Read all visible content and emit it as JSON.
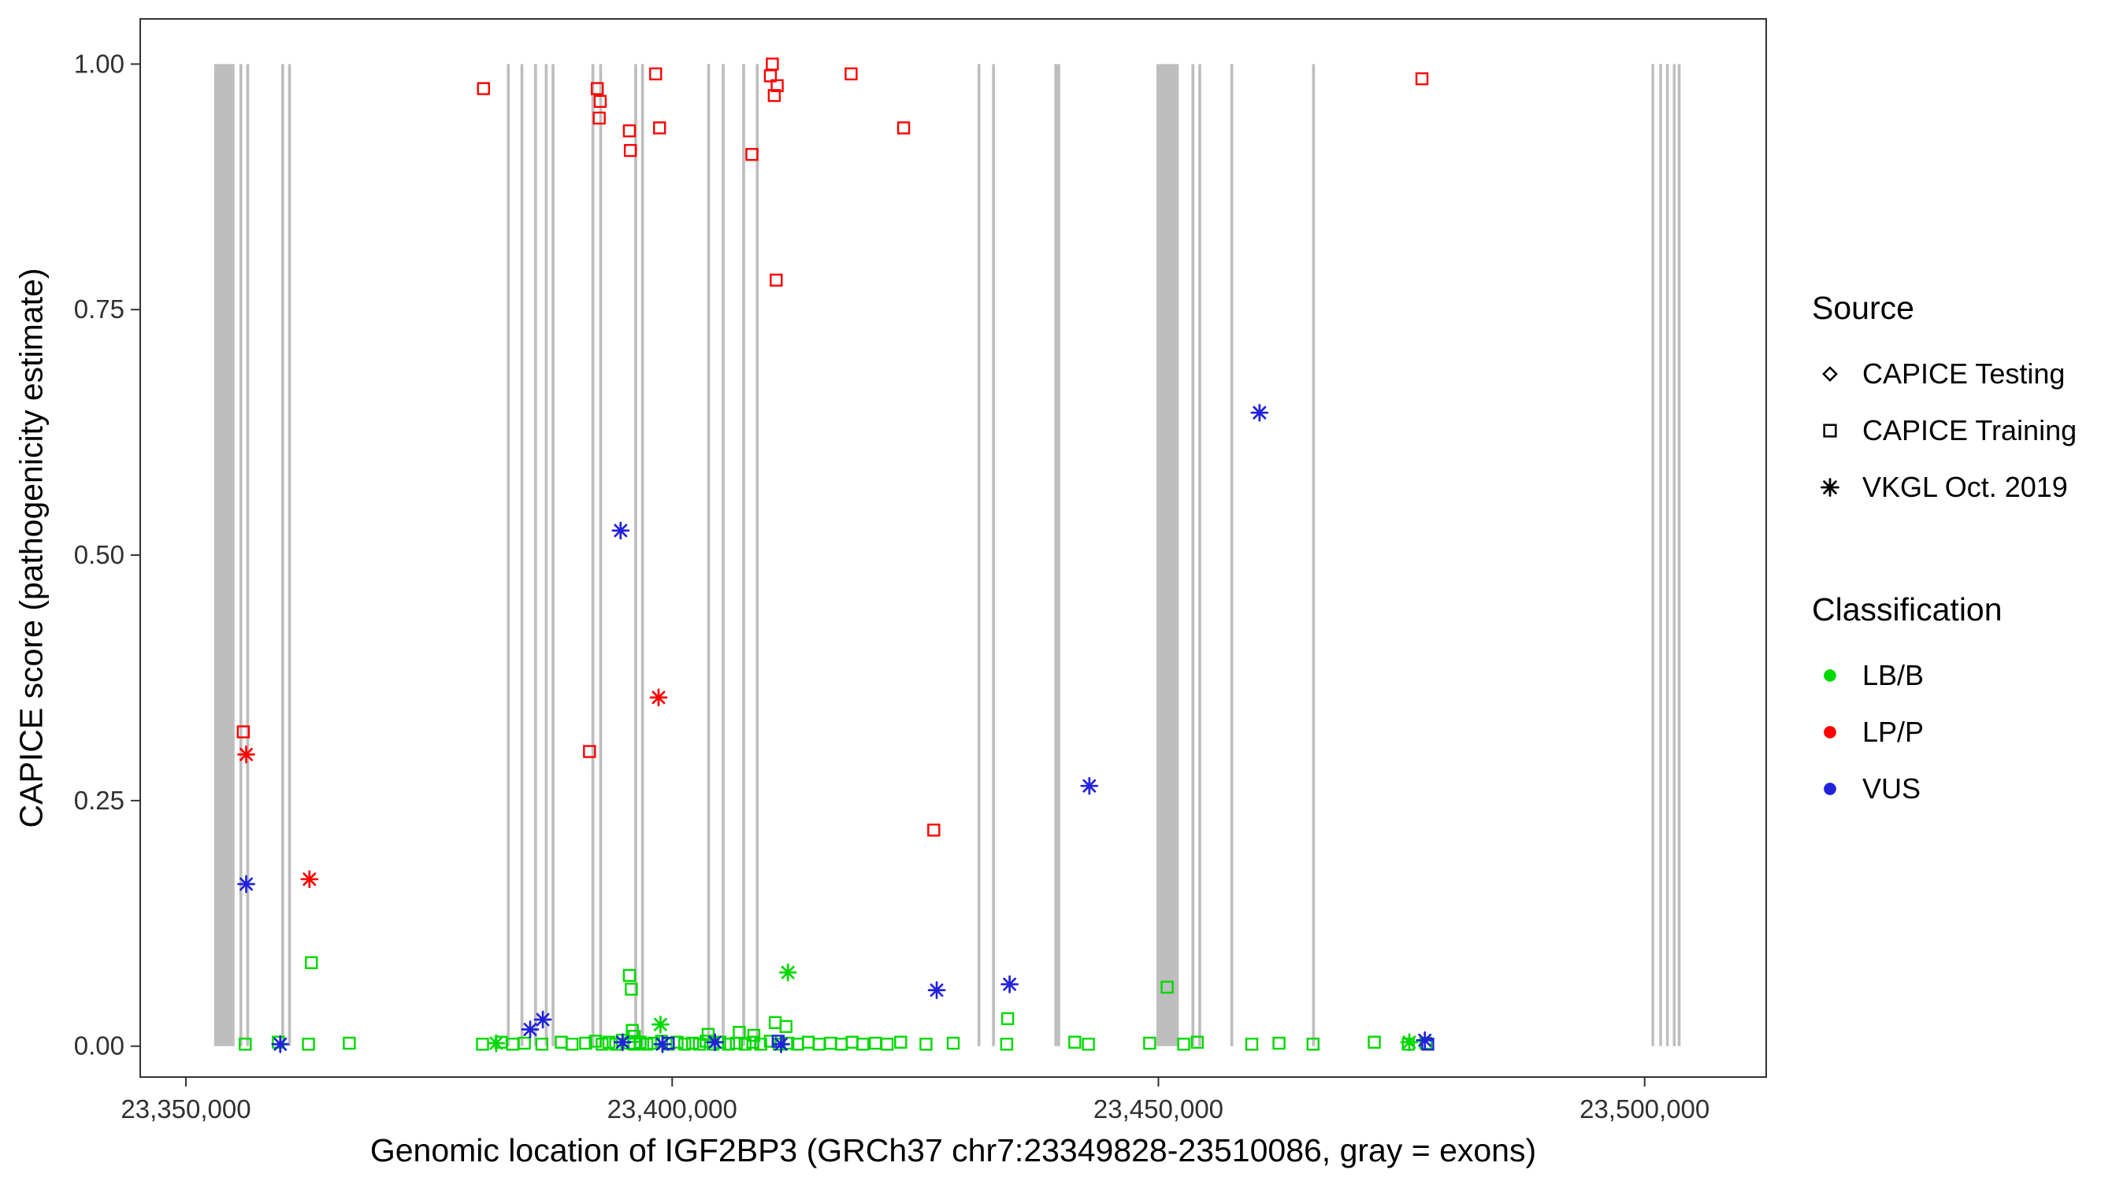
{
  "figure": {
    "x_axis_title": "Genomic location of IGF2BP3 (GRCh37 chr7:23349828-23510086, gray = exons)",
    "y_axis_title": "CAPICE score (pathogenicity estimate)"
  },
  "legend": {
    "source": {
      "title": "Source",
      "items": [
        {
          "label": "CAPICE Testing",
          "glyph": "diamond"
        },
        {
          "label": "CAPICE Training",
          "glyph": "square"
        },
        {
          "label": "VKGL Oct. 2019",
          "glyph": "asterisk"
        }
      ]
    },
    "classification": {
      "title": "Classification",
      "items": [
        {
          "label": "LB/B",
          "color": "#00D900"
        },
        {
          "label": "LP/P",
          "color": "#FF0000"
        },
        {
          "label": "VUS",
          "color": "#2222DD"
        }
      ]
    }
  },
  "chart_data": {
    "type": "scatter",
    "title": "",
    "xlabel": "Genomic location of IGF2BP3 (GRCh37 chr7:23349828-23510086, gray = exons)",
    "ylabel": "CAPICE score (pathogenicity estimate)",
    "x_domain": [
      23345300,
      23512500
    ],
    "y_domain": [
      -0.0315,
      1.046
    ],
    "x_ticks": [
      {
        "value": 23350000,
        "label": "23,350,000"
      },
      {
        "value": 23400000,
        "label": "23,400,000"
      },
      {
        "value": 23450000,
        "label": "23,450,000"
      },
      {
        "value": 23500000,
        "label": "23,500,000"
      }
    ],
    "y_ticks": [
      {
        "value": 0,
        "label": "0.00"
      },
      {
        "value": 0.25,
        "label": "0.25"
      },
      {
        "value": 0.5,
        "label": "0.50"
      },
      {
        "value": 0.75,
        "label": "0.75"
      },
      {
        "value": 1,
        "label": "1.00"
      }
    ],
    "grid": false,
    "legend_position": "right",
    "exon_color": "#BEBEBE",
    "exons": [
      [
        23352900,
        23355000
      ],
      [
        23355500,
        23355800
      ],
      [
        23356200,
        23356500
      ],
      [
        23359800,
        23360100
      ],
      [
        23360500,
        23360800
      ],
      [
        23383000,
        23383300
      ],
      [
        23384400,
        23384700
      ],
      [
        23385800,
        23386100
      ],
      [
        23386900,
        23387200
      ],
      [
        23387600,
        23387900
      ],
      [
        23391700,
        23392000
      ],
      [
        23392500,
        23392800
      ],
      [
        23396100,
        23396400
      ],
      [
        23396800,
        23397100
      ],
      [
        23403600,
        23403900
      ],
      [
        23405100,
        23405400
      ],
      [
        23407200,
        23407500
      ],
      [
        23408600,
        23408900
      ],
      [
        23431400,
        23431700
      ],
      [
        23432900,
        23433200
      ],
      [
        23439300,
        23439900
      ],
      [
        23449800,
        23452100
      ],
      [
        23453400,
        23453700
      ],
      [
        23454100,
        23454400
      ],
      [
        23457400,
        23457700
      ],
      [
        23465800,
        23466100
      ],
      [
        23500700,
        23500950
      ],
      [
        23501500,
        23501750
      ],
      [
        23502200,
        23502450
      ],
      [
        23502900,
        23503150
      ],
      [
        23503400,
        23503700
      ]
    ],
    "series": [
      {
        "name": "CAPICE Testing",
        "classification": "none",
        "source": "CAPICE Testing",
        "shape": "diamond",
        "color": "#000000",
        "points": []
      },
      {
        "name": "LB/B CAPICE Training",
        "classification": "LB/B",
        "source": "CAPICE Training",
        "shape": "square",
        "color": "#00D900",
        "points": [
          [
            23362900,
            0.085
          ],
          [
            23395600,
            0.072
          ],
          [
            23395800,
            0.058
          ],
          [
            23450900,
            0.06
          ],
          [
            23434500,
            0.028
          ],
          [
            23410600,
            0.024
          ],
          [
            23411700,
            0.02
          ],
          [
            23395900,
            0.016
          ],
          [
            23396100,
            0.01
          ],
          [
            23403700,
            0.012
          ],
          [
            23406900,
            0.014
          ],
          [
            23408400,
            0.011
          ],
          [
            23356100,
            0.002
          ],
          [
            23359500,
            0.004
          ],
          [
            23362600,
            0.002
          ],
          [
            23366800,
            0.003
          ],
          [
            23380500,
            0.002
          ],
          [
            23382400,
            0.004
          ],
          [
            23383600,
            0.002
          ],
          [
            23384800,
            0.003
          ],
          [
            23386600,
            0.002
          ],
          [
            23388600,
            0.004
          ],
          [
            23389700,
            0.002
          ],
          [
            23391100,
            0.003
          ],
          [
            23392100,
            0.005
          ],
          [
            23392800,
            0.002
          ],
          [
            23393500,
            0.004
          ],
          [
            23394200,
            0.002
          ],
          [
            23394900,
            0.006
          ],
          [
            23395600,
            0.003
          ],
          [
            23396100,
            0.002
          ],
          [
            23396700,
            0.004
          ],
          [
            23397400,
            0.002
          ],
          [
            23398100,
            0.003
          ],
          [
            23398900,
            0.005
          ],
          [
            23399600,
            0.002
          ],
          [
            23400500,
            0.004
          ],
          [
            23401300,
            0.002
          ],
          [
            23402100,
            0.003
          ],
          [
            23402800,
            0.002
          ],
          [
            23403500,
            0.005
          ],
          [
            23404200,
            0.002
          ],
          [
            23404900,
            0.004
          ],
          [
            23405800,
            0.002
          ],
          [
            23406600,
            0.003
          ],
          [
            23407500,
            0.002
          ],
          [
            23408300,
            0.004
          ],
          [
            23409100,
            0.002
          ],
          [
            23410100,
            0.005
          ],
          [
            23411000,
            0.002
          ],
          [
            23411900,
            0.003
          ],
          [
            23412900,
            0.002
          ],
          [
            23414000,
            0.004
          ],
          [
            23415100,
            0.002
          ],
          [
            23416300,
            0.003
          ],
          [
            23417400,
            0.002
          ],
          [
            23418500,
            0.004
          ],
          [
            23419600,
            0.002
          ],
          [
            23420900,
            0.003
          ],
          [
            23422100,
            0.002
          ],
          [
            23423500,
            0.004
          ],
          [
            23426100,
            0.002
          ],
          [
            23428900,
            0.003
          ],
          [
            23434400,
            0.002
          ],
          [
            23441400,
            0.004
          ],
          [
            23442800,
            0.002
          ],
          [
            23449100,
            0.003
          ],
          [
            23452600,
            0.002
          ],
          [
            23454000,
            0.004
          ],
          [
            23459600,
            0.002
          ],
          [
            23462400,
            0.003
          ],
          [
            23465900,
            0.002
          ],
          [
            23472200,
            0.004
          ],
          [
            23475700,
            0.002
          ],
          [
            23477500,
            0.003
          ]
        ]
      },
      {
        "name": "LB/B VKGL Oct. 2019",
        "classification": "LB/B",
        "source": "VKGL Oct. 2019",
        "shape": "asterisk",
        "color": "#00D900",
        "points": [
          [
            23381900,
            0.003
          ],
          [
            23398800,
            0.022
          ],
          [
            23411900,
            0.075
          ],
          [
            23475800,
            0.004
          ]
        ]
      },
      {
        "name": "LP/P CAPICE Training",
        "classification": "LP/P",
        "source": "CAPICE Training",
        "shape": "square",
        "color": "#FF0000",
        "points": [
          [
            23355900,
            0.32
          ],
          [
            23380600,
            0.975
          ],
          [
            23391500,
            0.3
          ],
          [
            23392300,
            0.975
          ],
          [
            23392600,
            0.962
          ],
          [
            23392500,
            0.945
          ],
          [
            23395600,
            0.932
          ],
          [
            23395700,
            0.912
          ],
          [
            23398300,
            0.99
          ],
          [
            23398700,
            0.935
          ],
          [
            23408200,
            0.908
          ],
          [
            23410300,
            1.0
          ],
          [
            23410100,
            0.988
          ],
          [
            23410800,
            0.978
          ],
          [
            23410500,
            0.968
          ],
          [
            23410700,
            0.78
          ],
          [
            23418400,
            0.99
          ],
          [
            23423800,
            0.935
          ],
          [
            23426900,
            0.22
          ],
          [
            23477100,
            0.985
          ]
        ]
      },
      {
        "name": "LP/P VKGL Oct. 2019",
        "classification": "LP/P",
        "source": "VKGL Oct. 2019",
        "shape": "asterisk",
        "color": "#FF0000",
        "points": [
          [
            23356200,
            0.297
          ],
          [
            23362700,
            0.17
          ],
          [
            23398600,
            0.355
          ]
        ]
      },
      {
        "name": "VUS CAPICE Training",
        "classification": "VUS",
        "source": "CAPICE Training",
        "shape": "square",
        "color": "#2222DD",
        "points": [
          [
            23399600,
            0.003
          ],
          [
            23410900,
            0.005
          ],
          [
            23477700,
            0.002
          ]
        ]
      },
      {
        "name": "VUS VKGL Oct. 2019",
        "classification": "VUS",
        "source": "VKGL Oct. 2019",
        "shape": "asterisk",
        "color": "#2222DD",
        "points": [
          [
            23356200,
            0.165
          ],
          [
            23394700,
            0.525
          ],
          [
            23460400,
            0.645
          ],
          [
            23442900,
            0.265
          ],
          [
            23427200,
            0.057
          ],
          [
            23434700,
            0.063
          ],
          [
            23385400,
            0.017
          ],
          [
            23386700,
            0.027
          ],
          [
            23359700,
            0.002
          ],
          [
            23394900,
            0.004
          ],
          [
            23399000,
            0.002
          ],
          [
            23404400,
            0.004
          ],
          [
            23411200,
            0.002
          ],
          [
            23477400,
            0.006
          ]
        ]
      }
    ]
  }
}
